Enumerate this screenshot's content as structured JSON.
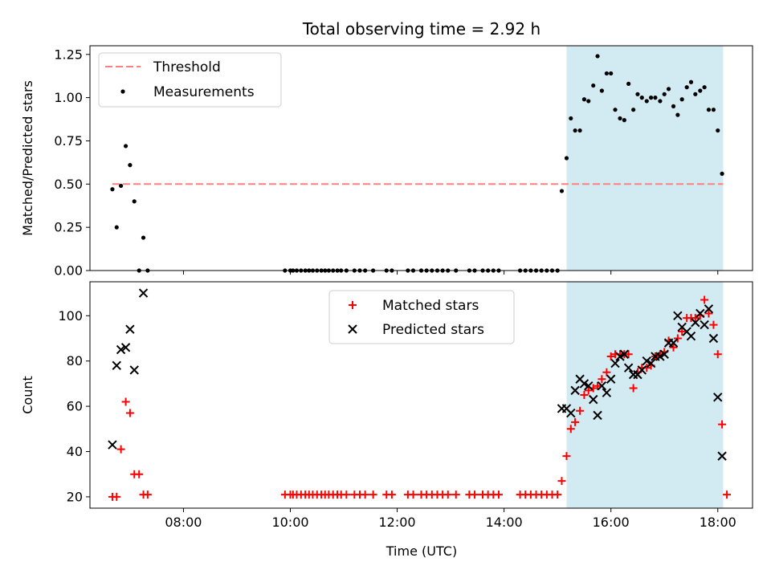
{
  "figure": {
    "title": "Total observing time = 2.92 h",
    "xlabel": "Time (UTC)",
    "highlight_color": "#add8e6",
    "x_tick_labels": [
      "08:00",
      "10:00",
      "12:00",
      "14:00",
      "16:00",
      "18:00"
    ]
  },
  "chart_data": [
    {
      "type": "scatter",
      "ylabel": "Matched/Predicted stars",
      "xlim": [
        6.25,
        18.65
      ],
      "ylim": [
        0,
        1.3
      ],
      "yticks": [
        "0.00",
        "0.25",
        "0.50",
        "0.75",
        "1.00",
        "1.25"
      ],
      "highlight": [
        15.17,
        18.1
      ],
      "legend_position": "top-left",
      "threshold": {
        "name": "Threshold",
        "value": 0.5,
        "x": [
          6.67,
          18.1
        ],
        "color": "#ff7f7f"
      },
      "series": [
        {
          "name": "Measurements",
          "color": "#000000",
          "points": [
            [
              6.67,
              0.47
            ],
            [
              6.75,
              0.25
            ],
            [
              6.83,
              0.49
            ],
            [
              6.92,
              0.72
            ],
            [
              7.0,
              0.61
            ],
            [
              7.08,
              0.4
            ],
            [
              7.17,
              0.0
            ],
            [
              7.25,
              0.19
            ],
            [
              7.33,
              0.0
            ],
            [
              9.9,
              0.0
            ],
            [
              10.0,
              0.0
            ],
            [
              10.05,
              0.0
            ],
            [
              10.12,
              0.0
            ],
            [
              10.2,
              0.0
            ],
            [
              10.28,
              0.0
            ],
            [
              10.35,
              0.0
            ],
            [
              10.42,
              0.0
            ],
            [
              10.5,
              0.0
            ],
            [
              10.58,
              0.0
            ],
            [
              10.65,
              0.0
            ],
            [
              10.72,
              0.0
            ],
            [
              10.8,
              0.0
            ],
            [
              10.88,
              0.0
            ],
            [
              10.95,
              0.0
            ],
            [
              11.05,
              0.0
            ],
            [
              11.2,
              0.0
            ],
            [
              11.3,
              0.0
            ],
            [
              11.4,
              0.0
            ],
            [
              11.55,
              0.0
            ],
            [
              11.8,
              0.0
            ],
            [
              11.9,
              0.0
            ],
            [
              12.2,
              0.0
            ],
            [
              12.3,
              0.0
            ],
            [
              12.45,
              0.0
            ],
            [
              12.55,
              0.0
            ],
            [
              12.65,
              0.0
            ],
            [
              12.75,
              0.0
            ],
            [
              12.85,
              0.0
            ],
            [
              12.95,
              0.0
            ],
            [
              13.1,
              0.0
            ],
            [
              13.35,
              0.0
            ],
            [
              13.45,
              0.0
            ],
            [
              13.6,
              0.0
            ],
            [
              13.7,
              0.0
            ],
            [
              13.8,
              0.0
            ],
            [
              13.9,
              0.0
            ],
            [
              14.3,
              0.0
            ],
            [
              14.4,
              0.0
            ],
            [
              14.5,
              0.0
            ],
            [
              14.6,
              0.0
            ],
            [
              14.7,
              0.0
            ],
            [
              14.8,
              0.0
            ],
            [
              14.9,
              0.0
            ],
            [
              15.0,
              0.0
            ],
            [
              15.08,
              0.46
            ],
            [
              15.17,
              0.65
            ],
            [
              15.25,
              0.88
            ],
            [
              15.33,
              0.81
            ],
            [
              15.42,
              0.81
            ],
            [
              15.5,
              0.99
            ],
            [
              15.58,
              0.98
            ],
            [
              15.67,
              1.07
            ],
            [
              15.75,
              1.24
            ],
            [
              15.83,
              1.04
            ],
            [
              15.92,
              1.14
            ],
            [
              16.0,
              1.14
            ],
            [
              16.08,
              0.93
            ],
            [
              16.17,
              0.88
            ],
            [
              16.25,
              0.87
            ],
            [
              16.33,
              1.08
            ],
            [
              16.42,
              0.93
            ],
            [
              16.5,
              1.02
            ],
            [
              16.58,
              1.0
            ],
            [
              16.67,
              0.98
            ],
            [
              16.75,
              1.0
            ],
            [
              16.83,
              1.0
            ],
            [
              16.92,
              0.98
            ],
            [
              17.0,
              1.02
            ],
            [
              17.08,
              1.05
            ],
            [
              17.17,
              0.95
            ],
            [
              17.25,
              0.9
            ],
            [
              17.33,
              0.99
            ],
            [
              17.42,
              1.06
            ],
            [
              17.5,
              1.09
            ],
            [
              17.58,
              1.02
            ],
            [
              17.67,
              1.04
            ],
            [
              17.75,
              1.06
            ],
            [
              17.83,
              0.93
            ],
            [
              17.92,
              0.93
            ],
            [
              18.0,
              0.81
            ],
            [
              18.08,
              0.56
            ]
          ]
        }
      ]
    },
    {
      "type": "scatter",
      "ylabel": "Count",
      "xlim": [
        6.25,
        18.65
      ],
      "ylim": [
        15,
        115
      ],
      "yticks": [
        "20",
        "40",
        "60",
        "80",
        "100"
      ],
      "highlight": [
        15.17,
        18.1
      ],
      "legend_position": "upper-center",
      "series": [
        {
          "name": "Matched stars",
          "color": "#ff0000",
          "marker": "plus",
          "points": [
            [
              6.67,
              20
            ],
            [
              6.75,
              20
            ],
            [
              6.83,
              41
            ],
            [
              6.92,
              62
            ],
            [
              7.0,
              57
            ],
            [
              7.08,
              30
            ],
            [
              7.17,
              30
            ],
            [
              7.25,
              21
            ],
            [
              7.33,
              21
            ],
            [
              9.9,
              21
            ],
            [
              10.0,
              21
            ],
            [
              10.05,
              21
            ],
            [
              10.12,
              21
            ],
            [
              10.2,
              21
            ],
            [
              10.28,
              21
            ],
            [
              10.35,
              21
            ],
            [
              10.42,
              21
            ],
            [
              10.5,
              21
            ],
            [
              10.58,
              21
            ],
            [
              10.65,
              21
            ],
            [
              10.72,
              21
            ],
            [
              10.8,
              21
            ],
            [
              10.88,
              21
            ],
            [
              10.95,
              21
            ],
            [
              11.05,
              21
            ],
            [
              11.2,
              21
            ],
            [
              11.3,
              21
            ],
            [
              11.4,
              21
            ],
            [
              11.55,
              21
            ],
            [
              11.8,
              21
            ],
            [
              11.9,
              21
            ],
            [
              12.2,
              21
            ],
            [
              12.3,
              21
            ],
            [
              12.45,
              21
            ],
            [
              12.55,
              21
            ],
            [
              12.65,
              21
            ],
            [
              12.75,
              21
            ],
            [
              12.85,
              21
            ],
            [
              12.95,
              21
            ],
            [
              13.1,
              21
            ],
            [
              13.35,
              21
            ],
            [
              13.45,
              21
            ],
            [
              13.6,
              21
            ],
            [
              13.7,
              21
            ],
            [
              13.8,
              21
            ],
            [
              13.9,
              21
            ],
            [
              14.3,
              21
            ],
            [
              14.4,
              21
            ],
            [
              14.5,
              21
            ],
            [
              14.6,
              21
            ],
            [
              14.7,
              21
            ],
            [
              14.8,
              21
            ],
            [
              14.9,
              21
            ],
            [
              15.0,
              21
            ],
            [
              15.08,
              27
            ],
            [
              15.17,
              38
            ],
            [
              15.25,
              50
            ],
            [
              15.33,
              53
            ],
            [
              15.42,
              58
            ],
            [
              15.5,
              65
            ],
            [
              15.58,
              67
            ],
            [
              15.67,
              68
            ],
            [
              15.75,
              69
            ],
            [
              15.83,
              72
            ],
            [
              15.92,
              75
            ],
            [
              16.0,
              82
            ],
            [
              16.08,
              83
            ],
            [
              16.17,
              83
            ],
            [
              16.25,
              83
            ],
            [
              16.33,
              83
            ],
            [
              16.42,
              68
            ],
            [
              16.5,
              75
            ],
            [
              16.58,
              77
            ],
            [
              16.67,
              77
            ],
            [
              16.75,
              78
            ],
            [
              16.83,
              82
            ],
            [
              16.92,
              83
            ],
            [
              17.0,
              84
            ],
            [
              17.08,
              89
            ],
            [
              17.17,
              86
            ],
            [
              17.25,
              90
            ],
            [
              17.33,
              93
            ],
            [
              17.42,
              99
            ],
            [
              17.5,
              99
            ],
            [
              17.58,
              99
            ],
            [
              17.67,
              100
            ],
            [
              17.75,
              107
            ],
            [
              17.83,
              101
            ],
            [
              17.92,
              96
            ],
            [
              18.0,
              83
            ],
            [
              18.08,
              52
            ],
            [
              18.17,
              21
            ]
          ]
        },
        {
          "name": "Predicted stars",
          "color": "#000000",
          "marker": "x",
          "points": [
            [
              6.67,
              43
            ],
            [
              6.75,
              78
            ],
            [
              6.83,
              85
            ],
            [
              6.92,
              86
            ],
            [
              7.0,
              94
            ],
            [
              7.08,
              76
            ],
            [
              7.25,
              110
            ],
            [
              15.08,
              59
            ],
            [
              15.17,
              59
            ],
            [
              15.25,
              57
            ],
            [
              15.33,
              67
            ],
            [
              15.42,
              72
            ],
            [
              15.5,
              70
            ],
            [
              15.58,
              69
            ],
            [
              15.67,
              63
            ],
            [
              15.75,
              56
            ],
            [
              15.83,
              69
            ],
            [
              15.92,
              66
            ],
            [
              16.0,
              72
            ],
            [
              16.08,
              79
            ],
            [
              16.17,
              82
            ],
            [
              16.25,
              83
            ],
            [
              16.33,
              77
            ],
            [
              16.42,
              74
            ],
            [
              16.5,
              74
            ],
            [
              16.58,
              76
            ],
            [
              16.67,
              80
            ],
            [
              16.75,
              79
            ],
            [
              16.83,
              82
            ],
            [
              16.92,
              82
            ],
            [
              17.0,
              83
            ],
            [
              17.08,
              88
            ],
            [
              17.17,
              88
            ],
            [
              17.25,
              100
            ],
            [
              17.33,
              95
            ],
            [
              17.42,
              93
            ],
            [
              17.5,
              91
            ],
            [
              17.58,
              97
            ],
            [
              17.67,
              101
            ],
            [
              17.75,
              96
            ],
            [
              17.83,
              103
            ],
            [
              17.92,
              90
            ],
            [
              18.0,
              64
            ],
            [
              18.08,
              38
            ]
          ]
        }
      ]
    }
  ]
}
